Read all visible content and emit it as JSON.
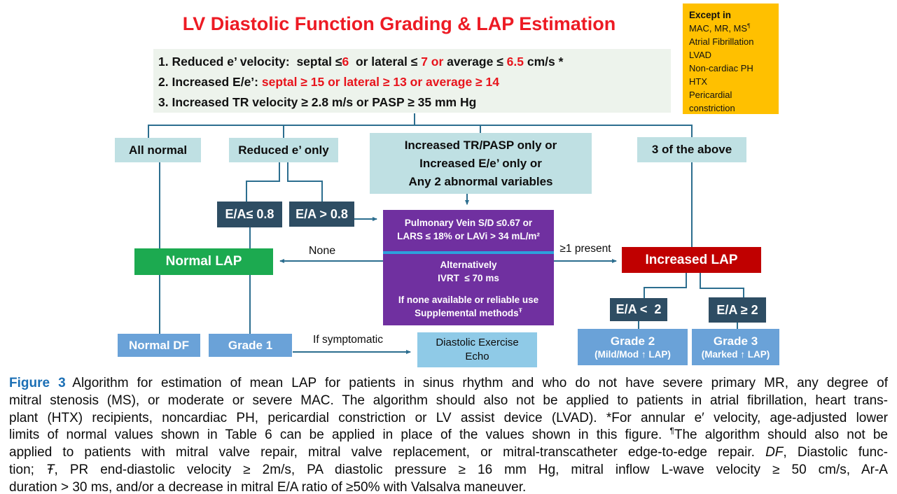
{
  "title": "LV Diastolic Function Grading & LAP Estimation",
  "colors": {
    "title_red": "#ed1b24",
    "criteria_highlight_red": "#e8141c",
    "criteria_bg": "#edf3ec",
    "teal_box": "#bfe0e3",
    "slate_box": "#2e4d63",
    "green_box": "#1caa50",
    "red_box": "#c00000",
    "purple_box": "#7030a0",
    "divider_blue": "#2da0dc",
    "blue_box": "#6aa2d8",
    "sky_box": "#8fcae7",
    "orange_box": "#ffc000",
    "connector": "#2c6e8f",
    "figure_label_blue": "#1b6fb5"
  },
  "except_box": {
    "heading": "Except in",
    "items": [
      [
        {
          "t": "MAC, MR, MS",
          "c": ""
        },
        {
          "t": "¶",
          "c": "sup"
        }
      ],
      [
        {
          "t": "Atrial Fibrillation",
          "c": ""
        }
      ],
      [
        {
          "t": "LVAD",
          "c": ""
        }
      ],
      [
        {
          "t": "Non-cardiac PH",
          "c": ""
        }
      ],
      [
        {
          "t": "HTX",
          "c": ""
        }
      ],
      [
        {
          "t": "Pericardial constriction",
          "c": ""
        }
      ]
    ]
  },
  "criteria": [
    [
      {
        "t": "1. Reduced e’ velocity:  septal ≤",
        "c": ""
      },
      {
        "t": "6",
        "c": "red"
      },
      {
        "t": "  or lateral ≤ ",
        "c": ""
      },
      {
        "t": "7 or",
        "c": "red"
      },
      {
        "t": " average ≤ ",
        "c": ""
      },
      {
        "t": "6.5",
        "c": "red"
      },
      {
        "t": " cm/s *",
        "c": ""
      }
    ],
    [
      {
        "t": "2. Increased E/e’: ",
        "c": ""
      },
      {
        "t": "septal ≥ 15 or lateral ≥ 13 or average ≥ 14",
        "c": "red"
      }
    ],
    [
      {
        "t": "3. Increased TR velocity ≥ 2.8 m/s or PASP ≥ 35 mm Hg",
        "c": ""
      }
    ]
  ],
  "flow": {
    "all_normal": "All normal",
    "reduced_e": "Reduced e’ only",
    "combo": {
      "l1": "Increased TR/PASP only or",
      "l2": "Increased E/e’ only or",
      "l3": "Any 2 abnormal variables"
    },
    "three_above": "3 of the above",
    "ea_le_08": "E/A≤ 0.8",
    "ea_gt_08": "E/A > 0.8",
    "normal_lap": "Normal LAP",
    "increased_lap": "Increased LAP",
    "purple": {
      "l1": "Pulmonary Vein S/D ≤0.67 or",
      "l2": "LARS ≤ 18% or LAVi > 34 mL/m²",
      "alt1": "Alternatively",
      "alt2": "IVRT  ≤ 70 ms",
      "fb1": "If none available or reliable use",
      "fb2": "Supplemental methods",
      "fb2_sup": "Ŧ"
    },
    "ea_lt_2": "E/A <  2",
    "ea_ge_2": "E/A ≥ 2",
    "normal_df": "Normal DF",
    "grade_1": "Grade 1",
    "grade_2": {
      "title": "Grade 2",
      "sub": "(Mild/Mod ↑ LAP)"
    },
    "grade_3": {
      "title": "Grade 3",
      "sub": "(Marked ↑ LAP)"
    },
    "diastolic_echo": {
      "l1": "Diastolic Exercise",
      "l2": "Echo"
    },
    "labels": {
      "none": "None",
      "ge1": "≥1 present",
      "symptomatic": "If symptomatic"
    }
  },
  "caption": {
    "lines": [
      [
        {
          "t": "Figure 3",
          "c": "fig"
        },
        {
          "t": " Algorithm for estimation of mean LAP for patients in sinus rhythm and who do not have severe primary MR, any degree of",
          "c": ""
        }
      ],
      [
        {
          "t": "mitral stenosis (MS), or moderate or severe MAC. The algorithm should also not be applied to patients in atrial fibrillation, heart trans-",
          "c": ""
        }
      ],
      [
        {
          "t": "plant (HTX) recipients, noncardiac PH, pericardial constriction or LV assist device (LVAD). *For annular e′ velocity, age-adjusted lower",
          "c": ""
        }
      ],
      [
        {
          "t": "limits of normal values shown in Table 6 can be applied in place of the values shown in this figure. ",
          "c": ""
        },
        {
          "t": "¶",
          "c": "sup"
        },
        {
          "t": "The algorithm should also not be",
          "c": ""
        }
      ],
      [
        {
          "t": "applied to patients with mitral valve repair, mitral valve replacement, or mitral-transcatheter edge-to-edge repair. ",
          "c": ""
        },
        {
          "t": "DF",
          "c": "it"
        },
        {
          "t": ", Diastolic func-",
          "c": ""
        }
      ],
      [
        {
          "t": "tion; ",
          "c": ""
        },
        {
          "t": "Ŧ",
          "c": "it"
        },
        {
          "t": ", PR end-diastolic velocity ≥ 2m/s, PA diastolic pressure ≥ 16 mm Hg, mitral inflow L-wave velocity ≥ 50 cm/s, Ar-A",
          "c": ""
        }
      ],
      [
        {
          "t": "duration > 30 ms, and/or a decrease in mitral E/A ratio of ≥50% with Valsalva maneuver.",
          "c": ""
        }
      ]
    ]
  }
}
